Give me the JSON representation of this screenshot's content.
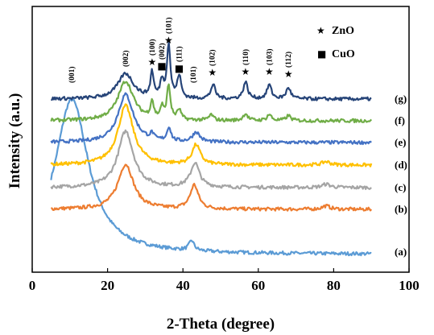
{
  "chart_data": {
    "type": "line",
    "xlabel": "2-Theta (degree)",
    "ylabel": "Intensity (a.u.)",
    "xlim": [
      0,
      100
    ],
    "xticks": [
      "0",
      "20",
      "40",
      "60",
      "80",
      "100"
    ],
    "legend": [
      {
        "symbol": "★",
        "label": "ZnO"
      },
      {
        "symbol": "■",
        "label": "CuO"
      }
    ],
    "series": [
      {
        "name": "(a)",
        "color": "#5b9bd5",
        "baseline": 0.0,
        "peaks": [
          [
            10.5,
            10.8,
            0.55
          ],
          [
            42.3,
            1.6,
            0.035
          ]
        ]
      },
      {
        "name": "(b)",
        "color": "#ed7d31",
        "baseline": 0.0,
        "peaks": [
          [
            24.8,
            5.0,
            0.16
          ],
          [
            43.0,
            2.6,
            0.085
          ],
          [
            78.0,
            2.5,
            0.012
          ]
        ]
      },
      {
        "name": "(c)",
        "color": "#a5a5a5",
        "baseline": 0.0,
        "peaks": [
          [
            24.8,
            5.0,
            0.2
          ],
          [
            43.2,
            2.8,
            0.085
          ],
          [
            78.0,
            2.5,
            0.012
          ]
        ]
      },
      {
        "name": "(d)",
        "color": "#ffc000",
        "baseline": 0.0,
        "peaks": [
          [
            24.8,
            5.0,
            0.21
          ],
          [
            43.5,
            2.6,
            0.07
          ],
          [
            78.0,
            2.5,
            0.012
          ]
        ]
      },
      {
        "name": "(e)",
        "color": "#4472c4",
        "baseline": 0.0,
        "peaks": [
          [
            24.8,
            5.0,
            0.17
          ],
          [
            31.8,
            1.0,
            0.02
          ],
          [
            36.3,
            1.2,
            0.05
          ],
          [
            43.5,
            2.3,
            0.035
          ]
        ]
      },
      {
        "name": "(f)",
        "color": "#70ad47",
        "baseline": 0.0,
        "peaks": [
          [
            24.8,
            5.0,
            0.14
          ],
          [
            31.8,
            1.0,
            0.06
          ],
          [
            34.4,
            1.0,
            0.04
          ],
          [
            36.2,
            1.1,
            0.12
          ],
          [
            39.0,
            1.2,
            0.035
          ],
          [
            47.5,
            1.4,
            0.02
          ],
          [
            56.6,
            1.4,
            0.025
          ],
          [
            62.9,
            1.4,
            0.022
          ],
          [
            68.0,
            1.4,
            0.018
          ]
        ]
      },
      {
        "name": "(g)",
        "color": "#264478",
        "baseline": 0.0,
        "peaks": [
          [
            24.8,
            5.0,
            0.09
          ],
          [
            31.8,
            1.0,
            0.09
          ],
          [
            34.4,
            1.0,
            0.06
          ],
          [
            36.2,
            1.1,
            0.19
          ],
          [
            39.0,
            1.2,
            0.08
          ],
          [
            48.0,
            1.4,
            0.05
          ],
          [
            56.6,
            1.4,
            0.06
          ],
          [
            62.9,
            1.4,
            0.05
          ],
          [
            68.0,
            1.4,
            0.04
          ]
        ]
      }
    ],
    "peak_labels": [
      {
        "x": 10.5,
        "text": "(001)"
      },
      {
        "x": 24.8,
        "text": "(002)"
      },
      {
        "x": 31.8,
        "text": "(100)",
        "marker": "★"
      },
      {
        "x": 34.4,
        "text": "(002)",
        "marker": "■"
      },
      {
        "x": 36.2,
        "text": "(101)",
        "marker": "★"
      },
      {
        "x": 39.0,
        "text": "(111)",
        "marker": "■"
      },
      {
        "x": 42.7,
        "text": "(101)"
      },
      {
        "x": 47.8,
        "text": "(102)",
        "marker": "★"
      },
      {
        "x": 56.6,
        "text": "(110)",
        "marker": "★"
      },
      {
        "x": 62.9,
        "text": "(103)",
        "marker": "★"
      },
      {
        "x": 68.0,
        "text": "(112)",
        "marker": "★"
      }
    ]
  }
}
